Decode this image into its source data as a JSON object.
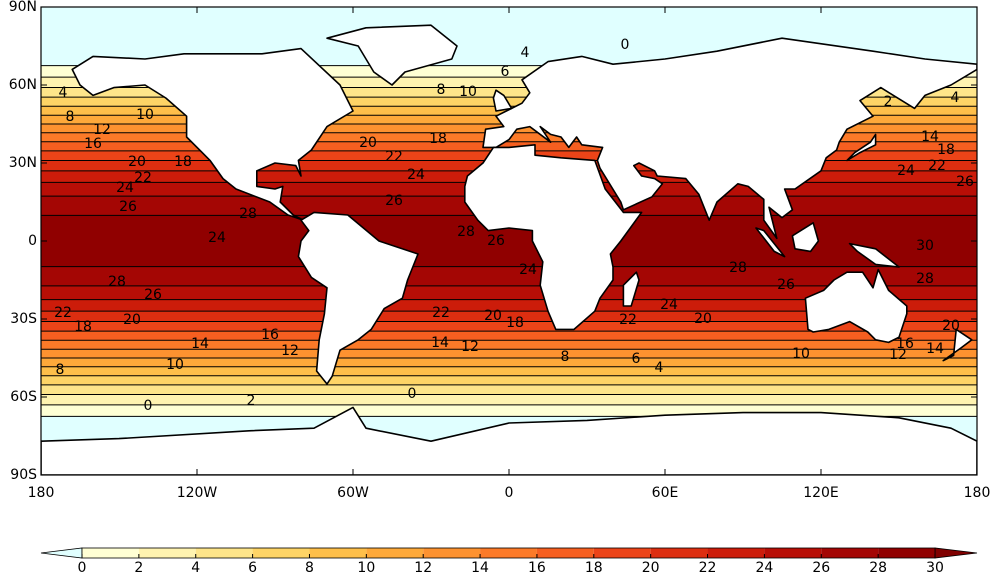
{
  "chart_data": {
    "type": "contour_map",
    "xlim": [
      -180,
      180
    ],
    "ylim": [
      -90,
      90
    ],
    "xticks": [
      {
        "value": -180,
        "label": "180"
      },
      {
        "value": -120,
        "label": "120W"
      },
      {
        "value": -60,
        "label": "60W"
      },
      0,
      {
        "value": 60,
        "label": "60E"
      },
      {
        "value": 120,
        "label": "120E"
      },
      180
    ],
    "yticks": [
      {
        "value": 90,
        "label": "90N"
      },
      {
        "value": 60,
        "label": "60N"
      },
      {
        "value": 30,
        "label": "30N"
      },
      0,
      {
        "value": -30,
        "label": "30S"
      },
      {
        "value": -60,
        "label": "60S"
      },
      {
        "value": -90,
        "label": "90S"
      }
    ],
    "colorbar": {
      "ticks": [
        0,
        2,
        4,
        6,
        8,
        10,
        12,
        14,
        16,
        18,
        20,
        22,
        24,
        26,
        28,
        30
      ],
      "colors": [
        "#ffffd4",
        "#fff3b0",
        "#fee58a",
        "#fed466",
        "#febf4a",
        "#fea93a",
        "#fd9230",
        "#fc7a28",
        "#f65f20",
        "#ec4418",
        "#dd2e10",
        "#cc1c0a",
        "#b80e06",
        "#a40604",
        "#900000"
      ],
      "under_color": "#e0ffff",
      "over_color": "#800000"
    },
    "contour_labels": [
      4,
      8,
      10,
      12,
      16,
      20,
      18,
      22,
      24,
      26,
      28,
      24,
      28,
      26,
      22,
      18,
      20,
      14,
      16,
      12,
      10,
      8,
      0,
      2,
      0,
      20,
      22,
      18,
      24,
      26,
      28,
      26,
      24,
      22,
      20,
      18,
      14,
      12,
      8,
      6,
      4,
      28,
      26,
      24,
      22,
      20,
      10,
      30,
      28,
      26,
      24,
      22,
      18,
      14,
      16,
      14,
      12,
      20,
      4,
      2,
      0,
      4,
      6,
      8,
      10
    ]
  }
}
